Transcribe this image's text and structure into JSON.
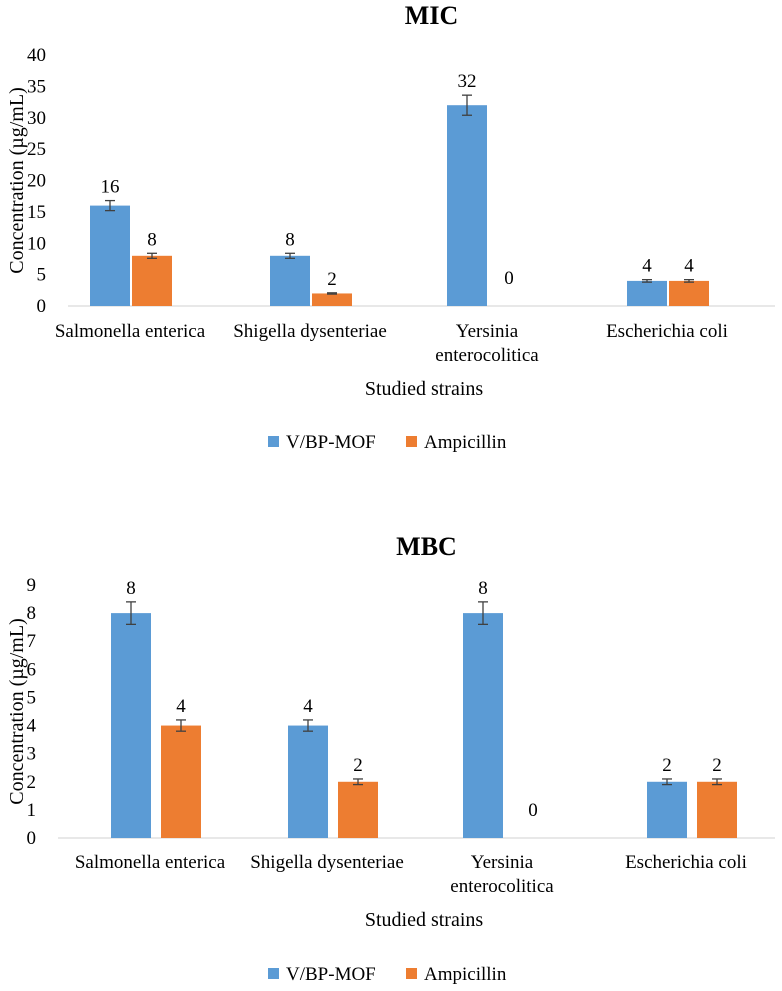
{
  "chart_data": [
    {
      "type": "bar",
      "title": "MIC",
      "xlabel": "Studied strains",
      "ylabel": "Concentration (µg/mL)",
      "ylim": [
        0,
        40
      ],
      "yticks": [
        0,
        5,
        10,
        15,
        20,
        25,
        30,
        35,
        40
      ],
      "grid": false,
      "legend_position": "bottom",
      "categories": [
        [
          "Salmonella enterica"
        ],
        [
          "Shigella dysenteriae"
        ],
        [
          "Yersinia",
          "enterocolitica"
        ],
        [
          "Escherichia coli"
        ]
      ],
      "series": [
        {
          "name": "V/BP-MOF",
          "color": "#5b9bd5",
          "values": [
            16,
            8,
            32,
            4
          ],
          "errors": [
            0.8,
            0.4,
            1.6,
            0.2
          ]
        },
        {
          "name": "Ampicillin",
          "color": "#ed7d31",
          "values": [
            8,
            2,
            0,
            4
          ],
          "errors": [
            0.4,
            0.1,
            0,
            0.2
          ]
        }
      ]
    },
    {
      "type": "bar",
      "title": "MBC",
      "xlabel": "Studied strains",
      "ylabel": "Concentration (µg/mL)",
      "ylim": [
        0,
        9
      ],
      "yticks": [
        0,
        1,
        2,
        3,
        4,
        5,
        6,
        7,
        8,
        9
      ],
      "grid": false,
      "legend_position": "bottom",
      "categories": [
        [
          "Salmonella enterica"
        ],
        [
          "Shigella dysenteriae"
        ],
        [
          "Yersinia",
          "enterocolitica"
        ],
        [
          "Escherichia coli"
        ]
      ],
      "series": [
        {
          "name": "V/BP-MOF",
          "color": "#5b9bd5",
          "values": [
            8,
            4,
            8,
            2
          ],
          "errors": [
            0.4,
            0.2,
            0.4,
            0.1
          ]
        },
        {
          "name": "Ampicillin",
          "color": "#ed7d31",
          "values": [
            4,
            2,
            0,
            2
          ],
          "errors": [
            0.2,
            0.1,
            0,
            0.1
          ]
        }
      ]
    }
  ]
}
